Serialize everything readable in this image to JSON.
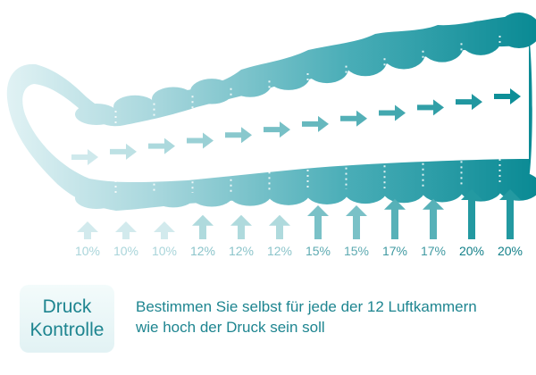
{
  "chambers": [
    {
      "pressure_label": "10%",
      "pressure": 10
    },
    {
      "pressure_label": "10%",
      "pressure": 10
    },
    {
      "pressure_label": "10%",
      "pressure": 10
    },
    {
      "pressure_label": "12%",
      "pressure": 12
    },
    {
      "pressure_label": "12%",
      "pressure": 12
    },
    {
      "pressure_label": "12%",
      "pressure": 12
    },
    {
      "pressure_label": "15%",
      "pressure": 15
    },
    {
      "pressure_label": "15%",
      "pressure": 15
    },
    {
      "pressure_label": "17%",
      "pressure": 17
    },
    {
      "pressure_label": "17%",
      "pressure": 17
    },
    {
      "pressure_label": "20%",
      "pressure": 20
    },
    {
      "pressure_label": "20%",
      "pressure": 20
    }
  ],
  "badge": {
    "line1": "Druck",
    "line2": "Kontrolle"
  },
  "description": {
    "line1": "Bestimmen Sie selbst für jede der 12 Luftkammern",
    "line2": "wie hoch der Druck sein soll"
  },
  "colors": {
    "teal": "#0e8f98",
    "teal_light": "#cfe9ec",
    "text": "#1e8590"
  }
}
